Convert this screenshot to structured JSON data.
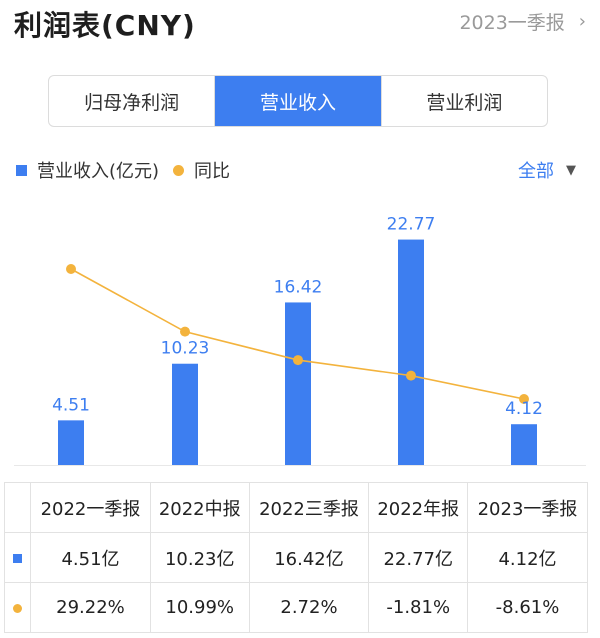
{
  "header": {
    "title": "利润表(CNY)",
    "period": "2023一季报",
    "chevron": "›"
  },
  "tabs": [
    {
      "label": "归母净利润",
      "active": false
    },
    {
      "label": "营业收入",
      "active": true
    },
    {
      "label": "营业利润",
      "active": false
    }
  ],
  "legend": {
    "bar_label": "营业收入(亿元)",
    "line_label": "同比"
  },
  "filter": {
    "label": "全部",
    "caret": "▼"
  },
  "colors": {
    "bar": "#3d7ef0",
    "line": "#f3b33d",
    "positive": "#e24a3b",
    "negative": "#1e9f4d"
  },
  "chart_data": {
    "type": "bar",
    "categories": [
      "2022一季报",
      "2022中报",
      "2022三季报",
      "2022年报",
      "2023一季报"
    ],
    "series": [
      {
        "name": "营业收入(亿元)",
        "type": "bar",
        "values": [
          4.51,
          10.23,
          16.42,
          22.77,
          4.12
        ]
      },
      {
        "name": "同比",
        "type": "line",
        "values": [
          29.22,
          10.99,
          2.72,
          -1.81,
          -8.61
        ]
      }
    ],
    "data_labels": [
      "4.51",
      "10.23",
      "16.42",
      "22.77",
      "4.12"
    ]
  },
  "table": {
    "headers": [
      "2022一季报",
      "2022中报",
      "2022三季报",
      "2022年报",
      "2023一季报"
    ],
    "revenue_row": [
      "4.51亿",
      "10.23亿",
      "16.42亿",
      "22.77亿",
      "4.12亿"
    ],
    "yoy_row": [
      "29.22%",
      "10.99%",
      "2.72%",
      "-1.81%",
      "-8.61%"
    ]
  }
}
